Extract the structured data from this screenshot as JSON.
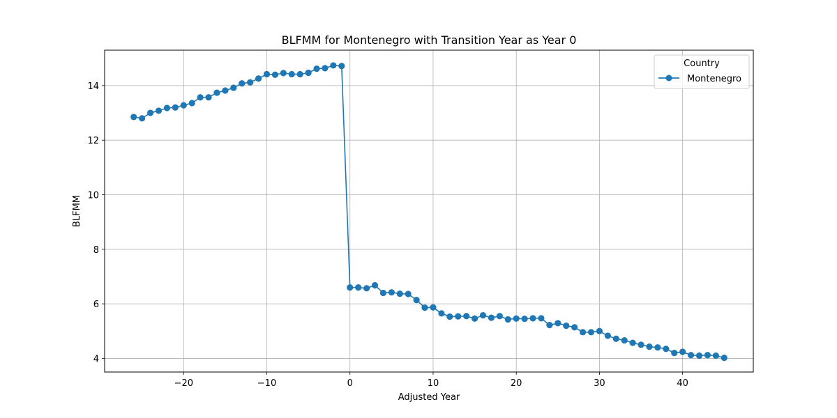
{
  "chart_data": {
    "type": "line",
    "title": "BLFMM for Montenegro with Transition Year as Year 0",
    "xlabel": "Adjusted Year",
    "ylabel": "BLFMM",
    "xlim": [
      -29.5,
      48.5
    ],
    "ylim": [
      3.5,
      15.3
    ],
    "xticks": [
      -20,
      -10,
      0,
      10,
      20,
      30,
      40
    ],
    "xtick_labels": [
      "−20",
      "−10",
      "0",
      "10",
      "20",
      "30",
      "40"
    ],
    "yticks": [
      4,
      6,
      8,
      10,
      12,
      14
    ],
    "ytick_labels": [
      "4",
      "6",
      "8",
      "10",
      "12",
      "14"
    ],
    "grid": true,
    "legend": {
      "title": "Country",
      "placement": "top-right"
    },
    "color": "#1f77b4",
    "series": [
      {
        "name": "Montenegro",
        "marker": "circle",
        "x": [
          -26,
          -25,
          -24,
          -23,
          -22,
          -21,
          -20,
          -19,
          -18,
          -17,
          -16,
          -15,
          -14,
          -13,
          -12,
          -11,
          -10,
          -9,
          -8,
          -7,
          -6,
          -5,
          -4,
          -3,
          -2,
          -1,
          0,
          1,
          2,
          3,
          4,
          5,
          6,
          7,
          8,
          9,
          10,
          11,
          12,
          13,
          14,
          15,
          16,
          17,
          18,
          19,
          20,
          21,
          22,
          23,
          24,
          25,
          26,
          27,
          28,
          29,
          30,
          31,
          32,
          33,
          34,
          35,
          36,
          37,
          38,
          39,
          40,
          41,
          42,
          43,
          44,
          45
        ],
        "y": [
          12.85,
          12.8,
          13.0,
          13.08,
          13.18,
          13.2,
          13.28,
          13.36,
          13.57,
          13.57,
          13.74,
          13.82,
          13.92,
          14.08,
          14.12,
          14.26,
          14.42,
          14.4,
          14.46,
          14.42,
          14.42,
          14.47,
          14.62,
          14.64,
          14.74,
          14.72,
          6.6,
          6.6,
          6.57,
          6.68,
          6.4,
          6.42,
          6.37,
          6.36,
          6.14,
          5.86,
          5.87,
          5.65,
          5.53,
          5.54,
          5.55,
          5.46,
          5.58,
          5.49,
          5.55,
          5.43,
          5.46,
          5.45,
          5.47,
          5.47,
          5.22,
          5.29,
          5.2,
          5.14,
          4.96,
          4.96,
          5.0,
          4.83,
          4.72,
          4.66,
          4.57,
          4.5,
          4.43,
          4.4,
          4.35,
          4.2,
          4.24,
          4.12,
          4.1,
          4.12,
          4.1,
          4.02
        ]
      }
    ]
  }
}
